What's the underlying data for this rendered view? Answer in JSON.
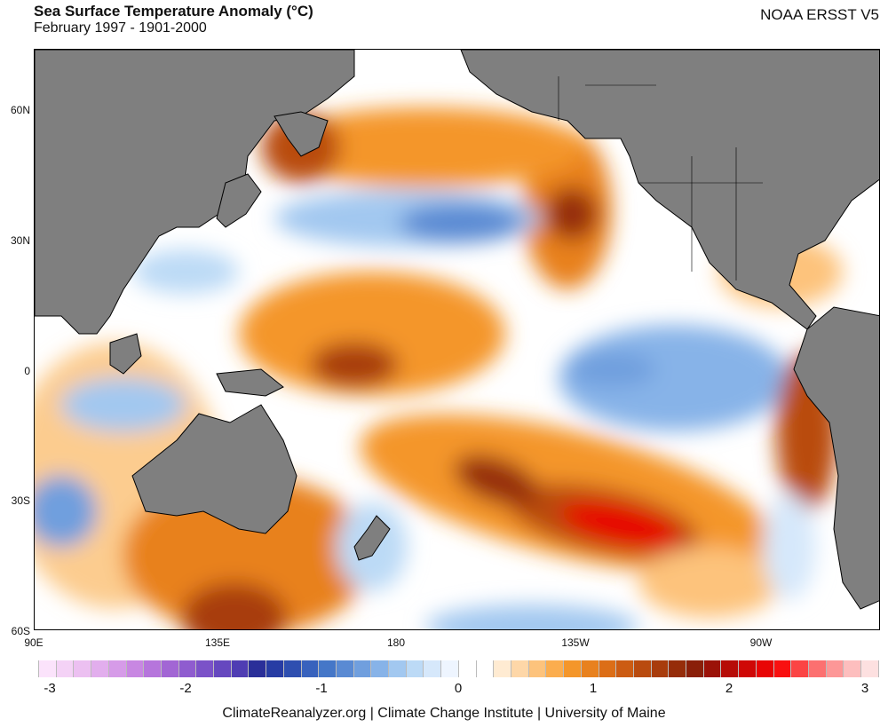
{
  "header": {
    "title": "Sea Surface Temperature Anomaly (°C)",
    "subtitle": "February 1997 - 1901-2000",
    "source": "NOAA ERSST V5"
  },
  "map": {
    "lat_labels": [
      "60N",
      "30N",
      "0",
      "30S",
      "60S"
    ],
    "lon_labels": [
      "90E",
      "135E",
      "180",
      "135W",
      "90W"
    ]
  },
  "colorbar": {
    "tick_labels": [
      "-3",
      "-2",
      "-1",
      "0",
      "1",
      "2",
      "3"
    ],
    "colors": [
      "#fbe3fb",
      "#f4d2f6",
      "#ecc0f1",
      "#e2aeed",
      "#d69be8",
      "#c887e2",
      "#b675dc",
      "#a266d4",
      "#8f5ccf",
      "#7b52c8",
      "#6648bf",
      "#4f3db3",
      "#2a2f99",
      "#273ca4",
      "#2e4fb0",
      "#3862bd",
      "#4577c8",
      "#5a8ad3",
      "#709fde",
      "#87b3e8",
      "#a2c8f0",
      "#bcdaf6",
      "#d6e8fb",
      "#eef5ff",
      "#ffffff",
      "#ffffff",
      "#ffebd2",
      "#fed7a8",
      "#fdc37c",
      "#fbad4e",
      "#f4962a",
      "#e8811e",
      "#dc6e17",
      "#cc5c13",
      "#b94b0f",
      "#a83c0c",
      "#962d0a",
      "#8a1f09",
      "#9b1208",
      "#b60c07",
      "#cf0806",
      "#e80505",
      "#f91010",
      "#fb4444",
      "#fc7070",
      "#fd9797",
      "#fdbebe",
      "#fde0e0"
    ]
  },
  "footer": {
    "credit": "ClimateReanalyzer.org | Climate Change Institute | University of Maine"
  }
}
